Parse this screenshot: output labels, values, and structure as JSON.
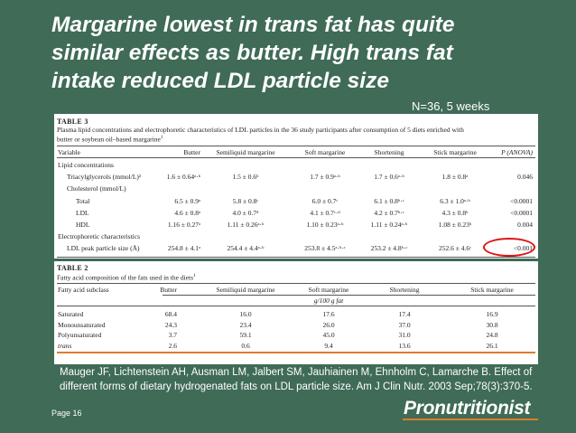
{
  "slide": {
    "title_lines": [
      "Margarine lowest in trans fat has quite",
      "similar effects as butter. High trans fat",
      "intake reduced LDL particle size"
    ],
    "study_note": "N=36, 5 weeks",
    "citation": "Mauger JF, Lichtenstein AH, Ausman LM, Jalbert SM, Jauhiainen M, Ehnholm C, Lamarche B. Effect of different forms of dietary hydrogenated fats on LDL particle size. Am J Clin Nutr. 2003 Sep;78(3):370-5.",
    "page_label": "Page 16",
    "logo_text": "Pronutritionist",
    "highlight_color": "#d11111",
    "accent_color": "#e07b2a",
    "background_color": "#3f6b57"
  },
  "table3": {
    "number": "TABLE 3",
    "caption": "Plasma lipid concentrations and electrophoretic characteristics of LDL particles in the 36 study participants after consumption of 5 diets enriched with butter or soybean oil–based margarine",
    "caption_mark": "1",
    "headers": [
      "Variable",
      "Butter",
      "Semiliquid margarine",
      "Soft margarine",
      "Shortening",
      "Stick margarine",
      "P (ANOVA)"
    ],
    "rows": [
      {
        "label": "Lipid concentrations",
        "indent": 0,
        "cells": [
          "",
          "",
          "",
          "",
          "",
          ""
        ]
      },
      {
        "label": "Triacylglycerols (mmol/L)²",
        "indent": 1,
        "cells": [
          "1.6 ± 0.64ᵃ·ᵇ",
          "1.5 ± 0.6ᵇ",
          "1.7 ± 0.9ᵃ·ᵇ",
          "1.7 ± 0.6ᵃ·ᵇ",
          "1.8 ± 0.8ᵃ",
          "0.046"
        ]
      },
      {
        "label": "Cholesterol (mmol/L)",
        "indent": 1,
        "cells": [
          "",
          "",
          "",
          "",
          "",
          ""
        ]
      },
      {
        "label": "Total",
        "indent": 2,
        "cells": [
          "6.5 ± 0.9ᵃ",
          "5.8 ± 0.8ᶜ",
          "6.0 ± 0.7ᶜ",
          "6.1 ± 0.8ᵇ·ᶜ",
          "6.3 ± 1.0ᵃ·ᵇ",
          "<0.0001"
        ]
      },
      {
        "label": "LDL",
        "indent": 2,
        "cells": [
          "4.6 ± 0.8ᵃ",
          "4.0 ± 0.7ᵈ",
          "4.1 ± 0.7ᶜ·ᵈ",
          "4.2 ± 0.7ᵇ·ᶜ",
          "4.3 ± 0.8ᵇ",
          "<0.0001"
        ]
      },
      {
        "label": "HDL",
        "indent": 2,
        "cells": [
          "1.16 ± 0.27ᵃ",
          "1.11 ± 0.26ᵃ·ᵇ",
          "1.10 ± 0.23ᵃ·ᵇ",
          "1.11 ± 0.24ᵃ·ᵇ",
          "1.08 ± 0.23ᵇ",
          "0.004"
        ]
      },
      {
        "label": "Electrophoretic characteristics",
        "indent": 0,
        "cells": [
          "",
          "",
          "",
          "",
          "",
          ""
        ]
      },
      {
        "label": "LDL peak particle size (Å)",
        "indent": 1,
        "cells": [
          "254.8 ± 4.1ᵃ",
          "254.4 ± 4.4ᵃ·ᵇ",
          "253.8 ± 4.5ᵃ·ᵇ·ᶜ",
          "253.2 ± 4.8ᵇ·ᶜ",
          "252.6 ± 4.6ᶜ",
          "<0.001"
        ]
      }
    ]
  },
  "table2": {
    "number": "TABLE 2",
    "caption": "Fatty acid composition of the fats used in the diets",
    "caption_mark": "1",
    "headers": [
      "Fatty acid subclass",
      "Butter",
      "Semiliquid margarine",
      "Soft margarine",
      "Shortening",
      "Stick margarine"
    ],
    "unit": "g/100 g fat",
    "rows": [
      {
        "label": "Saturated",
        "cells": [
          "68.4",
          "16.0",
          "17.6",
          "17.4",
          "16.9"
        ]
      },
      {
        "label": "Monounsaturated",
        "cells": [
          "24.3",
          "23.4",
          "26.0",
          "37.0",
          "30.8"
        ]
      },
      {
        "label": "Polyunsaturated",
        "cells": [
          "3.7",
          "59.1",
          "45.0",
          "31.0",
          "24.8"
        ]
      },
      {
        "label": "trans",
        "cells": [
          "2.6",
          "0.6",
          "9.4",
          "13.6",
          "26.1"
        ]
      }
    ]
  }
}
